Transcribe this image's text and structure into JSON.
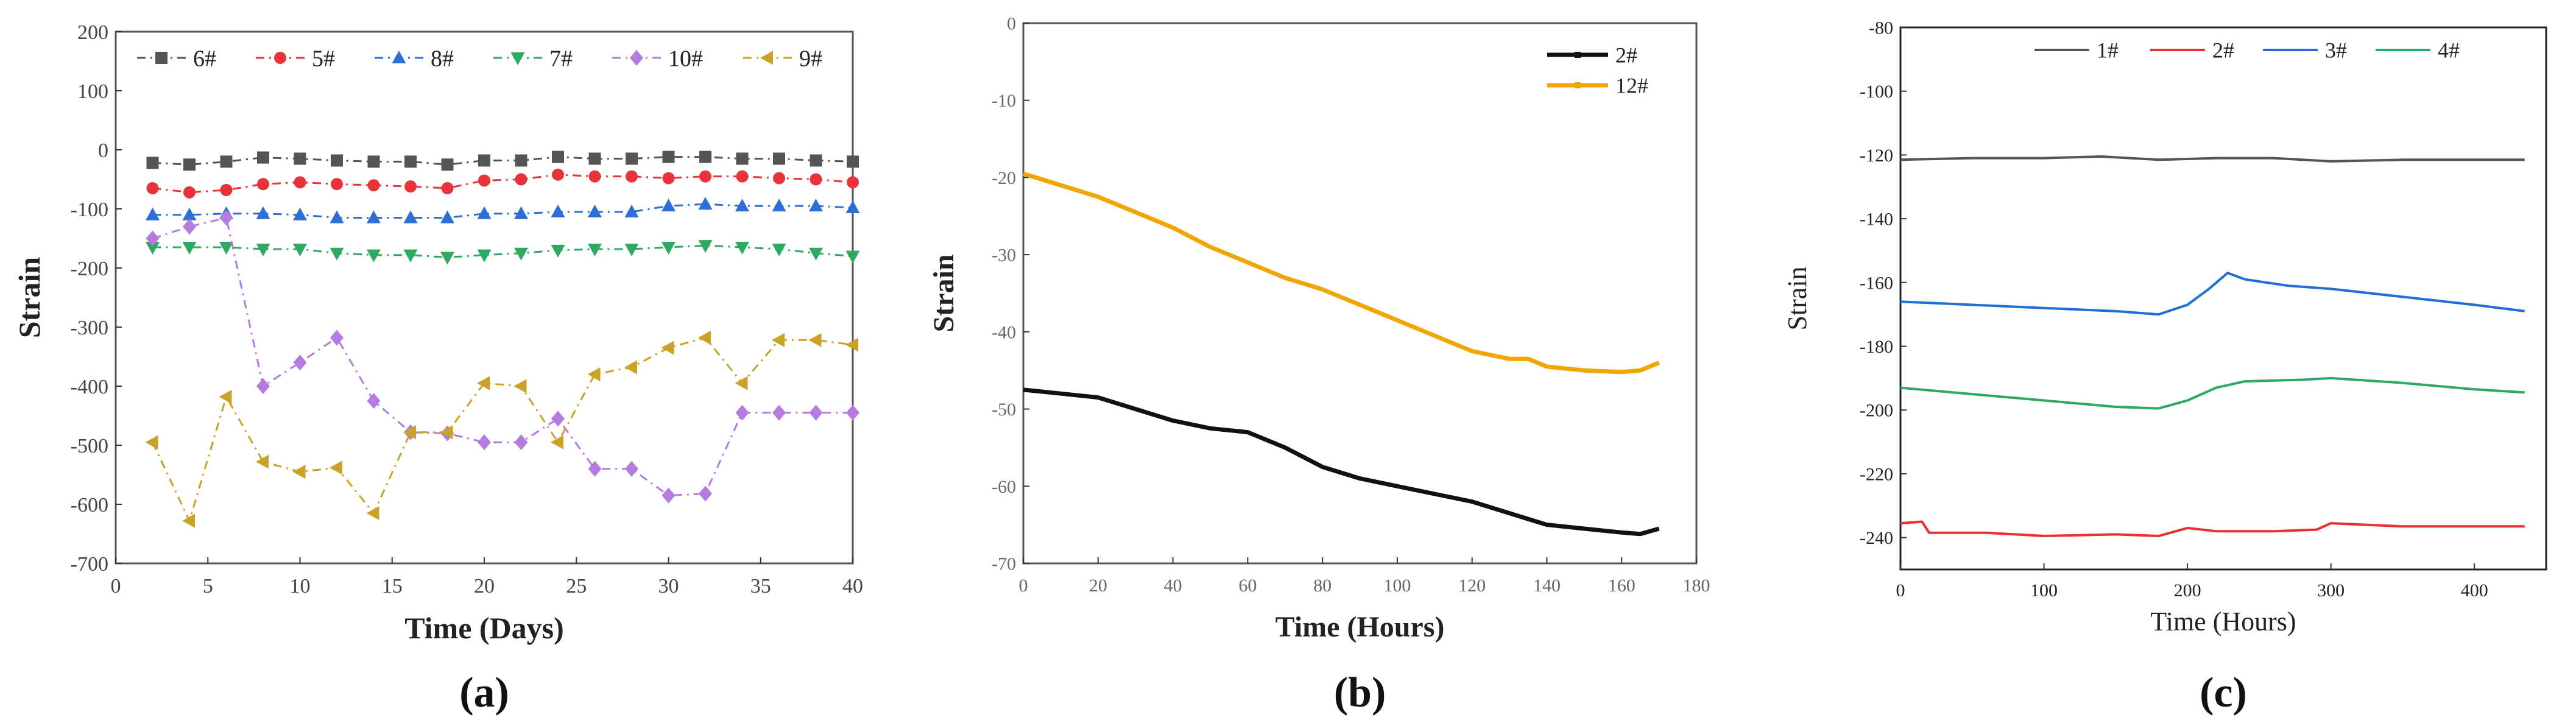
{
  "chart_data": [
    {
      "type": "line",
      "panel_label": "(a)",
      "xlabel": "Time (Days)",
      "ylabel": "Strain",
      "xlim": [
        0,
        40
      ],
      "ylim": [
        -700,
        200
      ],
      "xticks": [
        0,
        5,
        10,
        15,
        20,
        25,
        30,
        35,
        40
      ],
      "yticks": [
        -700,
        -600,
        -500,
        -400,
        -300,
        -200,
        -100,
        0,
        100,
        200
      ],
      "grid": false,
      "legend_position": "top",
      "x": [
        2,
        4,
        6,
        8,
        10,
        12,
        14,
        16,
        18,
        20,
        22,
        24,
        26,
        28,
        30,
        32,
        34,
        36,
        38,
        40
      ],
      "series": [
        {
          "name": "6#",
          "color": "#555555",
          "marker": "square",
          "values": [
            -22,
            -25,
            -20,
            -13,
            -15,
            -18,
            -20,
            -20,
            -25,
            -18,
            -18,
            -12,
            -15,
            -15,
            -12,
            -12,
            -15,
            -15,
            -18,
            -20
          ]
        },
        {
          "name": "5#",
          "color": "#e8333a",
          "marker": "circle",
          "values": [
            -65,
            -72,
            -68,
            -58,
            -55,
            -58,
            -60,
            -62,
            -65,
            -52,
            -50,
            -42,
            -45,
            -45,
            -48,
            -45,
            -45,
            -48,
            -50,
            -55
          ]
        },
        {
          "name": "8#",
          "color": "#2e6fd6",
          "marker": "triangle-up",
          "values": [
            -110,
            -110,
            -108,
            -108,
            -110,
            -115,
            -115,
            -115,
            -115,
            -108,
            -108,
            -105,
            -105,
            -105,
            -95,
            -92,
            -95,
            -95,
            -95,
            -98
          ]
        },
        {
          "name": "7#",
          "color": "#2fa862",
          "marker": "triangle-down",
          "values": [
            -165,
            -165,
            -165,
            -168,
            -168,
            -175,
            -178,
            -178,
            -182,
            -178,
            -175,
            -170,
            -168,
            -168,
            -165,
            -162,
            -165,
            -168,
            -175,
            -180
          ]
        },
        {
          "name": "10#",
          "color": "#b57be0",
          "marker": "diamond",
          "values": [
            -150,
            -130,
            -115,
            -400,
            -360,
            -318,
            -425,
            -478,
            -480,
            -495,
            -495,
            -455,
            -540,
            -540,
            -585,
            -582,
            -445,
            -445,
            -445,
            -445
          ]
        },
        {
          "name": "9#",
          "color": "#c9a227",
          "marker": "triangle-left",
          "values": [
            -495,
            -628,
            -418,
            -528,
            -545,
            -538,
            -615,
            -478,
            -478,
            -395,
            -400,
            -495,
            -380,
            -368,
            -335,
            -318,
            -395,
            -322,
            -322,
            -330
          ]
        }
      ]
    },
    {
      "type": "line",
      "panel_label": "(b)",
      "xlabel": "Time (Hours)",
      "ylabel": "Strain",
      "xlim": [
        0,
        180
      ],
      "ylim": [
        -70,
        0
      ],
      "xticks": [
        0,
        20,
        40,
        60,
        80,
        100,
        120,
        140,
        160,
        180
      ],
      "yticks": [
        -70,
        -60,
        -50,
        -40,
        -30,
        -20,
        -10,
        0
      ],
      "grid": false,
      "legend_position": "top-right",
      "series": [
        {
          "name": "2#",
          "color": "#111111",
          "points": [
            [
              0,
              -47.5
            ],
            [
              10,
              -48
            ],
            [
              20,
              -48.5
            ],
            [
              30,
              -50
            ],
            [
              40,
              -51.5
            ],
            [
              50,
              -52.5
            ],
            [
              60,
              -53
            ],
            [
              70,
              -55
            ],
            [
              80,
              -57.5
            ],
            [
              90,
              -59
            ],
            [
              100,
              -60
            ],
            [
              110,
              -61
            ],
            [
              120,
              -62
            ],
            [
              130,
              -63.5
            ],
            [
              140,
              -65
            ],
            [
              150,
              -65.5
            ],
            [
              160,
              -66
            ],
            [
              165,
              -66.2
            ],
            [
              170,
              -65.5
            ]
          ]
        },
        {
          "name": "12#",
          "color": "#f0a500",
          "points": [
            [
              0,
              -19.5
            ],
            [
              10,
              -21
            ],
            [
              20,
              -22.5
            ],
            [
              30,
              -24.5
            ],
            [
              40,
              -26.5
            ],
            [
              50,
              -29
            ],
            [
              60,
              -31
            ],
            [
              70,
              -33
            ],
            [
              80,
              -34.5
            ],
            [
              90,
              -36.5
            ],
            [
              100,
              -38.5
            ],
            [
              110,
              -40.5
            ],
            [
              120,
              -42.5
            ],
            [
              130,
              -43.5
            ],
            [
              135,
              -43.5
            ],
            [
              140,
              -44.5
            ],
            [
              150,
              -45
            ],
            [
              160,
              -45.2
            ],
            [
              165,
              -45
            ],
            [
              170,
              -44
            ]
          ]
        }
      ]
    },
    {
      "type": "line",
      "panel_label": "(c)",
      "xlabel": "Time (Hours)",
      "ylabel": "Strain",
      "xlim": [
        0,
        450
      ],
      "ylim": [
        -250,
        -80
      ],
      "xticks": [
        0,
        100,
        200,
        300,
        400
      ],
      "yticks": [
        -240,
        -220,
        -200,
        -180,
        -160,
        -140,
        -120,
        -100,
        -80
      ],
      "grid": false,
      "legend_position": "top",
      "series": [
        {
          "name": "1#",
          "color": "#555555",
          "points": [
            [
              0,
              -121.5
            ],
            [
              50,
              -121
            ],
            [
              100,
              -121
            ],
            [
              140,
              -120.5
            ],
            [
              180,
              -121.5
            ],
            [
              220,
              -121
            ],
            [
              260,
              -121
            ],
            [
              300,
              -122
            ],
            [
              350,
              -121.5
            ],
            [
              400,
              -121.5
            ],
            [
              435,
              -121.5
            ]
          ]
        },
        {
          "name": "2#",
          "color": "#e83030",
          "points": [
            [
              0,
              -235.5
            ],
            [
              15,
              -235
            ],
            [
              20,
              -238.5
            ],
            [
              60,
              -238.5
            ],
            [
              100,
              -239.5
            ],
            [
              150,
              -239
            ],
            [
              180,
              -239.5
            ],
            [
              200,
              -237
            ],
            [
              220,
              -238
            ],
            [
              260,
              -238
            ],
            [
              290,
              -237.5
            ],
            [
              300,
              -235.5
            ],
            [
              350,
              -236.5
            ],
            [
              400,
              -236.5
            ],
            [
              435,
              -236.5
            ]
          ]
        },
        {
          "name": "3#",
          "color": "#1f6fd6",
          "points": [
            [
              0,
              -166
            ],
            [
              50,
              -167
            ],
            [
              100,
              -168
            ],
            [
              150,
              -169
            ],
            [
              180,
              -170
            ],
            [
              200,
              -167
            ],
            [
              215,
              -162
            ],
            [
              228,
              -157
            ],
            [
              240,
              -159
            ],
            [
              270,
              -161
            ],
            [
              300,
              -162
            ],
            [
              350,
              -164.5
            ],
            [
              400,
              -167
            ],
            [
              435,
              -169
            ]
          ]
        },
        {
          "name": "4#",
          "color": "#2ea864",
          "points": [
            [
              0,
              -193
            ],
            [
              50,
              -195
            ],
            [
              100,
              -197
            ],
            [
              150,
              -199
            ],
            [
              180,
              -199.5
            ],
            [
              200,
              -197
            ],
            [
              220,
              -193
            ],
            [
              240,
              -191
            ],
            [
              280,
              -190.5
            ],
            [
              300,
              -190
            ],
            [
              350,
              -191.5
            ],
            [
              400,
              -193.5
            ],
            [
              435,
              -194.5
            ]
          ]
        }
      ]
    }
  ]
}
